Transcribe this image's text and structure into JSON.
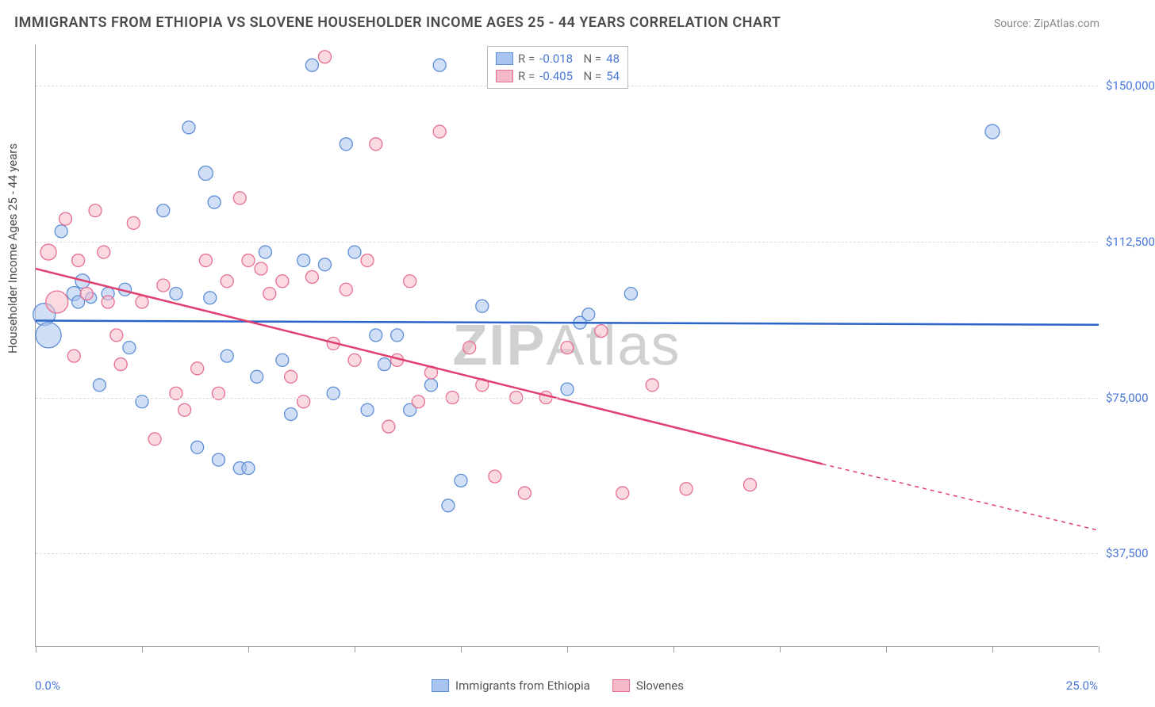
{
  "title": "IMMIGRANTS FROM ETHIOPIA VS SLOVENE HOUSEHOLDER INCOME AGES 25 - 44 YEARS CORRELATION CHART",
  "source": "Source: ZipAtlas.com",
  "yaxis_title": "Householder Income Ages 25 - 44 years",
  "xaxis": {
    "min": 0,
    "max": 25,
    "label_left": "0.0%",
    "label_right": "25.0%",
    "ticks_pct": [
      0,
      10,
      20,
      30,
      40,
      50,
      60,
      70,
      80,
      90,
      100
    ]
  },
  "yaxis": {
    "min": 15000,
    "max": 160000,
    "grid": [
      {
        "v": 37500,
        "label": "$37,500"
      },
      {
        "v": 75000,
        "label": "$75,000"
      },
      {
        "v": 112500,
        "label": "$112,500"
      },
      {
        "v": 150000,
        "label": "$150,000"
      }
    ]
  },
  "series": {
    "a": {
      "name": "Immigrants from Ethiopia",
      "fill": "#a9c5ef",
      "stroke": "#5e8ed6",
      "opacity": 0.55,
      "R": "-0.018",
      "N": "48",
      "trend": {
        "x1": 0,
        "y1": 93500,
        "x2": 25,
        "y2": 92500,
        "color": "#2a63c9",
        "width": 2.5,
        "dash_after": 25
      },
      "points": [
        [
          0.2,
          95000,
          14
        ],
        [
          0.3,
          90000,
          16
        ],
        [
          0.6,
          115000,
          8
        ],
        [
          0.9,
          100000,
          9
        ],
        [
          1.0,
          98000,
          8
        ],
        [
          1.1,
          103000,
          9
        ],
        [
          1.3,
          99000,
          7
        ],
        [
          1.5,
          78000,
          8
        ],
        [
          1.7,
          100000,
          8
        ],
        [
          2.1,
          101000,
          8
        ],
        [
          2.2,
          87000,
          8
        ],
        [
          2.5,
          74000,
          8
        ],
        [
          3.0,
          120000,
          8
        ],
        [
          3.3,
          100000,
          8
        ],
        [
          3.6,
          140000,
          8
        ],
        [
          3.8,
          63000,
          8
        ],
        [
          4.0,
          129000,
          9
        ],
        [
          4.1,
          99000,
          8
        ],
        [
          4.2,
          122000,
          8
        ],
        [
          4.3,
          60000,
          8
        ],
        [
          4.5,
          85000,
          8
        ],
        [
          4.8,
          58000,
          8
        ],
        [
          5.0,
          58000,
          8
        ],
        [
          5.2,
          80000,
          8
        ],
        [
          5.4,
          110000,
          8
        ],
        [
          5.8,
          84000,
          8
        ],
        [
          6.0,
          71000,
          8
        ],
        [
          6.3,
          108000,
          8
        ],
        [
          6.5,
          155000,
          8
        ],
        [
          6.8,
          107000,
          8
        ],
        [
          7.0,
          76000,
          8
        ],
        [
          7.3,
          136000,
          8
        ],
        [
          7.5,
          110000,
          8
        ],
        [
          7.8,
          72000,
          8
        ],
        [
          8.0,
          90000,
          8
        ],
        [
          8.2,
          83000,
          8
        ],
        [
          8.5,
          90000,
          8
        ],
        [
          8.8,
          72000,
          8
        ],
        [
          9.3,
          78000,
          8
        ],
        [
          9.5,
          155000,
          8
        ],
        [
          9.7,
          49000,
          8
        ],
        [
          10.0,
          55000,
          8
        ],
        [
          10.5,
          97000,
          8
        ],
        [
          12.5,
          77000,
          8
        ],
        [
          12.8,
          93000,
          8
        ],
        [
          13.0,
          95000,
          8
        ],
        [
          14.0,
          100000,
          8
        ],
        [
          22.5,
          139000,
          9
        ]
      ]
    },
    "b": {
      "name": "Slovenes",
      "fill": "#f6b9c8",
      "stroke": "#e66f92",
      "opacity": 0.55,
      "R": "-0.405",
      "N": "54",
      "trend": {
        "x1": 0,
        "y1": 106000,
        "x2": 18.5,
        "y2": 59000,
        "xe": 25,
        "ye": 43000,
        "color": "#e13f6f",
        "width": 2.5
      },
      "points": [
        [
          0.3,
          110000,
          10
        ],
        [
          0.5,
          98000,
          14
        ],
        [
          0.7,
          118000,
          8
        ],
        [
          0.9,
          85000,
          8
        ],
        [
          1.0,
          108000,
          8
        ],
        [
          1.2,
          100000,
          8
        ],
        [
          1.4,
          120000,
          8
        ],
        [
          1.6,
          110000,
          8
        ],
        [
          1.7,
          98000,
          8
        ],
        [
          1.9,
          90000,
          8
        ],
        [
          2.0,
          83000,
          8
        ],
        [
          2.3,
          117000,
          8
        ],
        [
          2.5,
          98000,
          8
        ],
        [
          2.8,
          65000,
          8
        ],
        [
          3.0,
          102000,
          8
        ],
        [
          3.3,
          76000,
          8
        ],
        [
          3.5,
          72000,
          8
        ],
        [
          3.8,
          82000,
          8
        ],
        [
          4.0,
          108000,
          8
        ],
        [
          4.3,
          76000,
          8
        ],
        [
          4.5,
          103000,
          8
        ],
        [
          4.8,
          123000,
          8
        ],
        [
          5.0,
          108000,
          8
        ],
        [
          5.3,
          106000,
          8
        ],
        [
          5.5,
          100000,
          8
        ],
        [
          5.8,
          103000,
          8
        ],
        [
          6.0,
          80000,
          8
        ],
        [
          6.3,
          74000,
          8
        ],
        [
          6.5,
          104000,
          8
        ],
        [
          6.8,
          157000,
          8
        ],
        [
          7.0,
          88000,
          8
        ],
        [
          7.3,
          101000,
          8
        ],
        [
          7.5,
          84000,
          8
        ],
        [
          7.8,
          108000,
          8
        ],
        [
          8.0,
          136000,
          8
        ],
        [
          8.3,
          68000,
          8
        ],
        [
          8.5,
          84000,
          8
        ],
        [
          8.8,
          103000,
          8
        ],
        [
          9.0,
          74000,
          8
        ],
        [
          9.3,
          81000,
          8
        ],
        [
          9.5,
          139000,
          8
        ],
        [
          9.8,
          75000,
          8
        ],
        [
          10.2,
          87000,
          8
        ],
        [
          10.5,
          78000,
          8
        ],
        [
          10.8,
          56000,
          8
        ],
        [
          11.3,
          75000,
          8
        ],
        [
          11.5,
          52000,
          8
        ],
        [
          12.0,
          75000,
          8
        ],
        [
          12.5,
          87000,
          8
        ],
        [
          13.3,
          91000,
          8
        ],
        [
          13.8,
          52000,
          8
        ],
        [
          14.5,
          78000,
          8
        ],
        [
          15.3,
          53000,
          8
        ],
        [
          16.8,
          54000,
          8
        ]
      ]
    }
  },
  "watermark": {
    "bold": "ZIP",
    "rest": "Atlas"
  },
  "colors": {
    "tick_label": "#4a76d8",
    "grid": "#dddddd",
    "axis": "#999999"
  }
}
